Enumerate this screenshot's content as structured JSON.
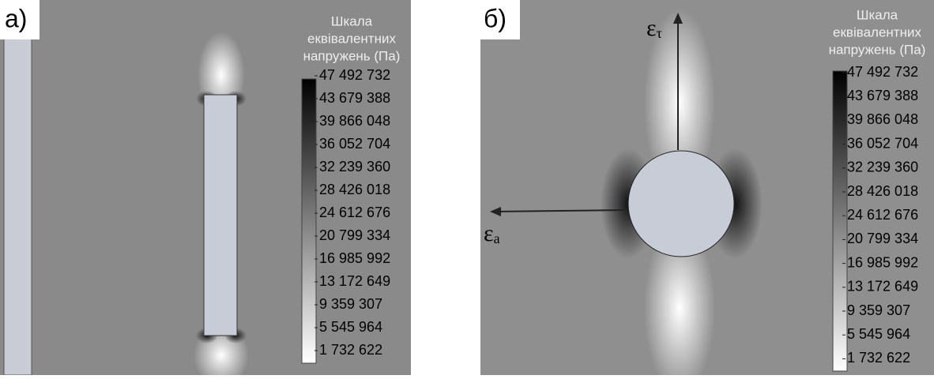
{
  "panels": [
    {
      "label": "а)",
      "scale_title": [
        "Шкала",
        "еквівалентних",
        "напружень (Па)"
      ],
      "scale_ticks": [
        "47 492 732",
        "43 679 388",
        "39 866 048",
        "36 052 704",
        "32 239 360",
        "28 426 018",
        "24 612 676",
        "20 799 334",
        "16 985 992",
        "13 172 649",
        "9 359 307",
        "5 545 964",
        "1 732 622"
      ]
    },
    {
      "label": "б)",
      "scale_title": [
        "Шкала",
        "еквівалентних",
        "напружень (Па)"
      ],
      "scale_ticks": [
        "47 492 732",
        "43 679 388",
        "39 866 048",
        "36 052 704",
        "32 239 360",
        "28 426 018",
        "24 612 676",
        "20 799 334",
        "16 985 992",
        "13 172 649",
        "9 359 307",
        "5 545 964",
        "1 732 622"
      ],
      "axis_labels": [
        {
          "symbol": "ε",
          "subscript": "τ"
        },
        {
          "symbol": "ε",
          "subscript": "а"
        }
      ]
    }
  ]
}
